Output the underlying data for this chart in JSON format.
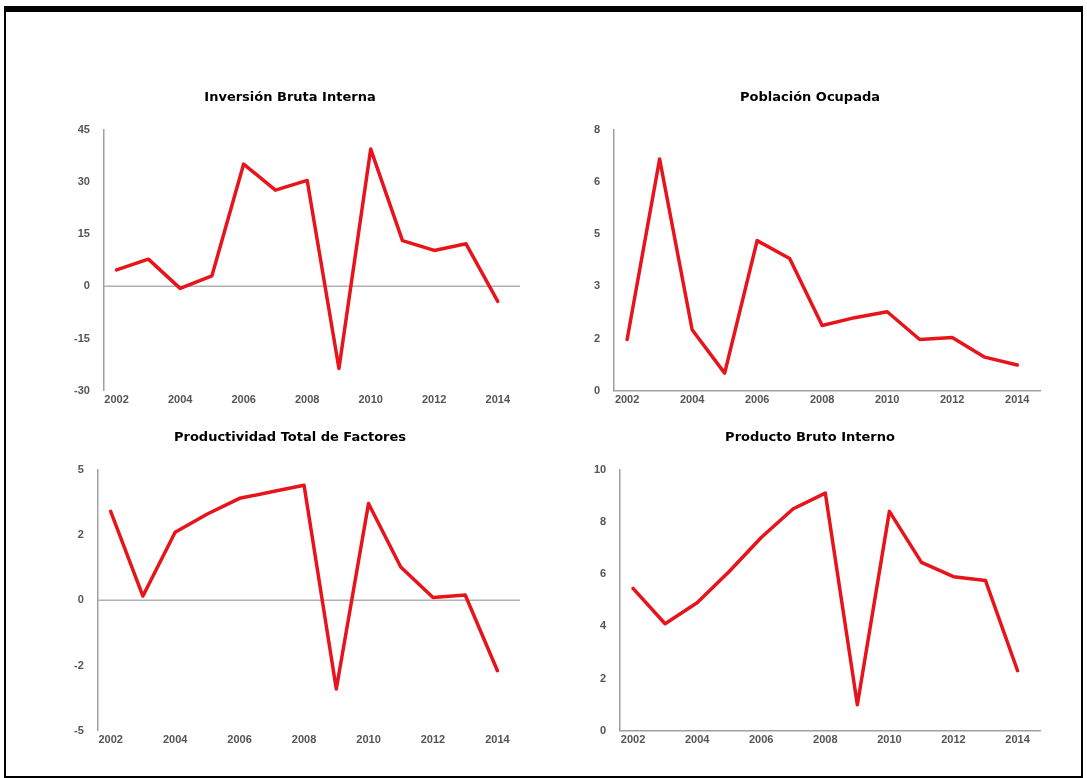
{
  "chart_data": [
    {
      "type": "line",
      "title": "Inversión Bruta Interna",
      "x": [
        2002,
        2003,
        2004,
        2005,
        2006,
        2007,
        2008,
        2009,
        2010,
        2011,
        2012,
        2013,
        2014
      ],
      "series": [
        {
          "color": "#e8141c",
          "values": [
            4.7,
            7.8,
            -0.6,
            3.0,
            35.1,
            27.6,
            30.4,
            -23.6,
            39.4,
            13.1,
            10.3,
            12.2,
            -4.3
          ]
        }
      ],
      "xlim": [
        2001.6,
        2014.7
      ],
      "xticks": [
        2002,
        2004,
        2006,
        2008,
        2010,
        2012,
        2014
      ],
      "ylim": [
        -30,
        45
      ],
      "yticks": [
        -30,
        -15,
        0,
        15,
        30,
        45
      ],
      "ref_lines": [
        {
          "axis": "y",
          "value": 0,
          "color": "#b0b0b0"
        }
      ],
      "grid": false,
      "legend": false,
      "marker": "none",
      "line_style": "solid"
    },
    {
      "type": "line",
      "title": "Población Ocupada",
      "x": [
        2002,
        2003,
        2004,
        2005,
        2006,
        2007,
        2008,
        2009,
        2010,
        2011,
        2012,
        2013,
        2014
      ],
      "series": [
        {
          "color": "#e8141c",
          "values": [
            1.57,
            7.1,
            1.87,
            0.54,
            4.6,
            4.05,
            2.0,
            2.24,
            2.42,
            1.57,
            1.63,
            1.03,
            0.79
          ]
        }
      ],
      "xlim": [
        2001.6,
        2014.7
      ],
      "xticks": [
        2002,
        2004,
        2006,
        2008,
        2010,
        2012,
        2014
      ],
      "ylim": [
        0,
        8
      ],
      "yticks": [
        0,
        {
          "value": 1.6,
          "label": "2"
        },
        {
          "value": 3.2,
          "label": "3"
        },
        {
          "value": 4.8,
          "label": "5"
        },
        {
          "value": 6.4,
          "label": "6"
        },
        8
      ],
      "grid": false,
      "legend": false,
      "marker": "none",
      "line_style": "solid"
    },
    {
      "type": "line",
      "title": "Productividad Total de Factores",
      "x": [
        2002,
        2003,
        2004,
        2005,
        2006,
        2007,
        2008,
        2009,
        2010,
        2011,
        2012,
        2013,
        2014
      ],
      "series": [
        {
          "color": "#e8141c",
          "values": [
            3.4,
            0.16,
            2.6,
            3.3,
            3.9,
            4.15,
            4.4,
            -3.4,
            3.7,
            1.27,
            0.1,
            0.2,
            -2.7
          ]
        }
      ],
      "xlim": [
        2001.6,
        2014.7
      ],
      "xticks": [
        2002,
        2004,
        2006,
        2008,
        2010,
        2012,
        2014
      ],
      "ylim": [
        -5,
        5
      ],
      "yticks": [
        -5,
        {
          "value": -2.5,
          "label": "-2"
        },
        0,
        {
          "value": 2.5,
          "label": "2"
        },
        5
      ],
      "ref_lines": [
        {
          "axis": "y",
          "value": 0,
          "color": "#b0b0b0"
        }
      ],
      "grid": false,
      "legend": false,
      "marker": "none",
      "line_style": "solid"
    },
    {
      "type": "line",
      "title": "Producto Bruto Interno",
      "x": [
        2002,
        2003,
        2004,
        2005,
        2006,
        2007,
        2008,
        2009,
        2010,
        2011,
        2012,
        2013,
        2014
      ],
      "series": [
        {
          "color": "#e8141c",
          "values": [
            5.45,
            4.1,
            4.9,
            6.1,
            7.4,
            8.5,
            9.1,
            1.0,
            8.4,
            6.45,
            5.9,
            5.75,
            2.3
          ]
        }
      ],
      "xlim": [
        2001.6,
        2014.7
      ],
      "xticks": [
        2002,
        2004,
        2006,
        2008,
        2010,
        2012,
        2014
      ],
      "ylim": [
        0,
        10
      ],
      "yticks": [
        0,
        2,
        4,
        6,
        8,
        10
      ],
      "grid": false,
      "legend": false,
      "marker": "none",
      "line_style": "solid"
    }
  ]
}
